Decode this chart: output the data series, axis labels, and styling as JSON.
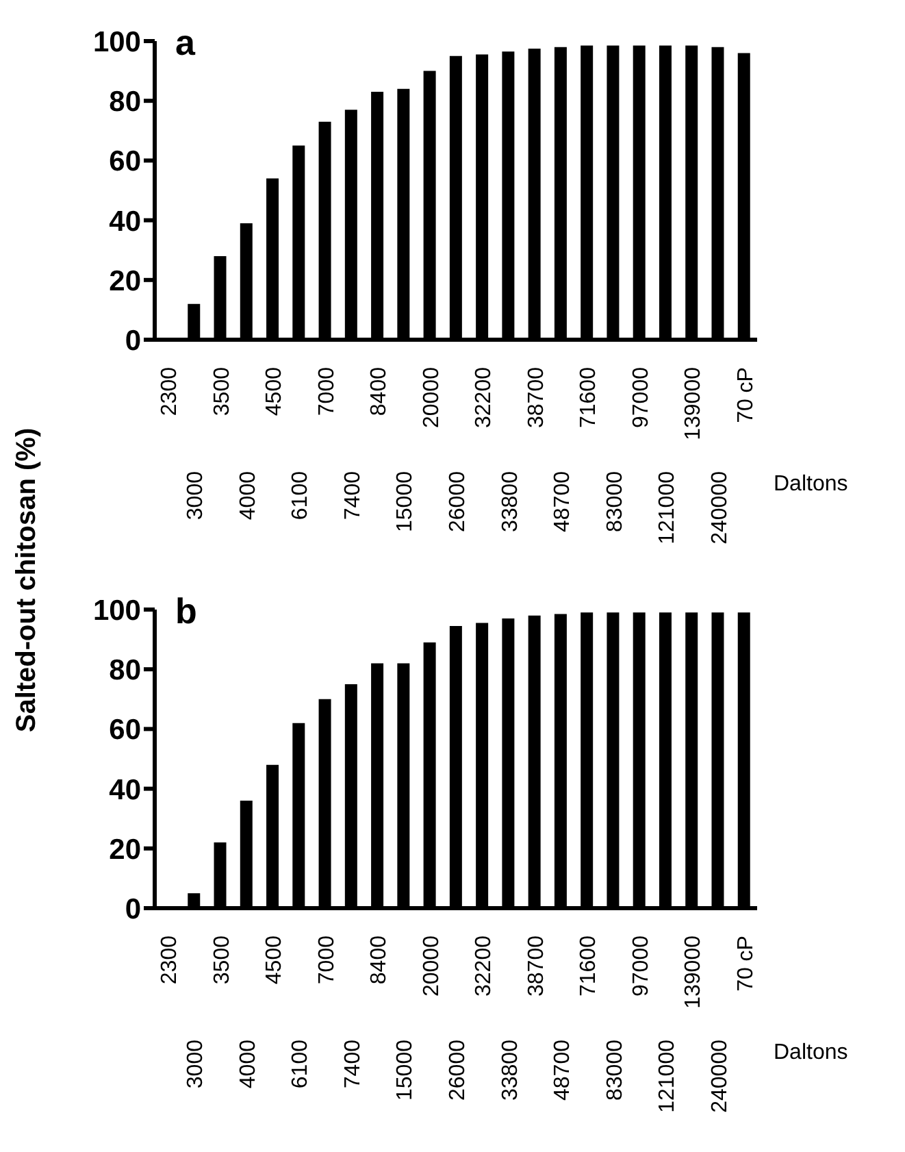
{
  "chart_data": [
    {
      "type": "bar",
      "title": "a",
      "ylabel": "Salted-out chitosan (%)",
      "xlabel": "Daltons",
      "categories": [
        "2300",
        "3000",
        "3500",
        "4000",
        "4500",
        "6100",
        "7000",
        "7400",
        "8400",
        "15000",
        "20000",
        "26000",
        "32200",
        "33800",
        "38700",
        "48700",
        "71600",
        "83000",
        "97000",
        "121000",
        "139000",
        "240000",
        "70 cP"
      ],
      "values": [
        0,
        12,
        28,
        39,
        54,
        65,
        73,
        77,
        83,
        84,
        90,
        95,
        95.5,
        96.5,
        97.5,
        98,
        98.5,
        98.5,
        98.5,
        98.5,
        98.5,
        98,
        96
      ],
      "color": "#000000",
      "ylim": [
        0,
        100
      ],
      "yticks": [
        0,
        20,
        40,
        60,
        80,
        100
      ]
    },
    {
      "type": "bar",
      "title": "b",
      "xlabel": "Daltons",
      "categories": [
        "2300",
        "3000",
        "3500",
        "4000",
        "4500",
        "6100",
        "7000",
        "7400",
        "8400",
        "15000",
        "20000",
        "26000",
        "32200",
        "33800",
        "38700",
        "48700",
        "71600",
        "83000",
        "97000",
        "121000",
        "139000",
        "240000",
        "70 cP"
      ],
      "values": [
        0,
        5,
        22,
        36,
        48,
        62,
        70,
        75,
        82,
        82,
        89,
        94.5,
        95.5,
        97,
        98,
        98.5,
        99,
        99,
        99,
        99,
        99,
        99,
        99
      ],
      "color": "#000000",
      "ylim": [
        0,
        100
      ],
      "yticks": [
        0,
        20,
        40,
        60,
        80,
        100
      ]
    }
  ]
}
